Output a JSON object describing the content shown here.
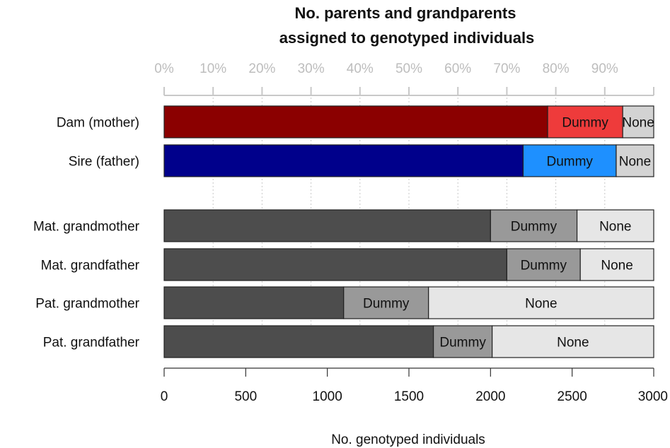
{
  "chart_data": {
    "type": "bar",
    "orientation": "horizontal",
    "stacked": true,
    "title_line1": "No. parents and grandparents",
    "title_line2": "assigned to genotyped individuals",
    "xlabel": "No. genotyped individuals",
    "xlim": [
      0,
      3000
    ],
    "x_ticks": [
      "0",
      "500",
      "1000",
      "1500",
      "2000",
      "2500",
      "3000"
    ],
    "x_tick_values": [
      0,
      500,
      1000,
      1500,
      2000,
      2500,
      3000
    ],
    "top_ticks": [
      "0%",
      "10%",
      "20%",
      "30%",
      "40%",
      "50%",
      "60%",
      "70%",
      "80%",
      "90%"
    ],
    "top_tick_values": [
      0,
      10,
      20,
      30,
      40,
      50,
      60,
      70,
      80,
      90
    ],
    "grid": "vertical dotted",
    "segment_labels": [
      "",
      "Dummy",
      "None"
    ],
    "categories": [
      "Dam (mother)",
      "Sire (father)",
      "Mat. grandmother",
      "Mat. grandfather",
      "Pat. grandmother",
      "Pat. grandfather"
    ],
    "rows": [
      {
        "label": "Dam (mother)",
        "values": [
          2350,
          460,
          190
        ],
        "colors": [
          "#8b0000",
          "#ee3b3b",
          "#d3d3d3"
        ]
      },
      {
        "label": "Sire (father)",
        "values": [
          2200,
          570,
          230
        ],
        "colors": [
          "#00008b",
          "#1e90ff",
          "#d3d3d3"
        ]
      },
      {
        "label": "Mat. grandmother",
        "values": [
          2000,
          530,
          470
        ],
        "colors": [
          "#4d4d4d",
          "#999999",
          "#e6e6e6"
        ]
      },
      {
        "label": "Mat. grandfather",
        "values": [
          2100,
          450,
          450
        ],
        "colors": [
          "#4d4d4d",
          "#999999",
          "#e6e6e6"
        ]
      },
      {
        "label": "Pat. grandmother",
        "values": [
          1100,
          520,
          1380
        ],
        "colors": [
          "#4d4d4d",
          "#999999",
          "#e6e6e6"
        ]
      },
      {
        "label": "Pat. grandfather",
        "values": [
          1650,
          360,
          990
        ],
        "colors": [
          "#4d4d4d",
          "#999999",
          "#e6e6e6"
        ]
      }
    ]
  }
}
